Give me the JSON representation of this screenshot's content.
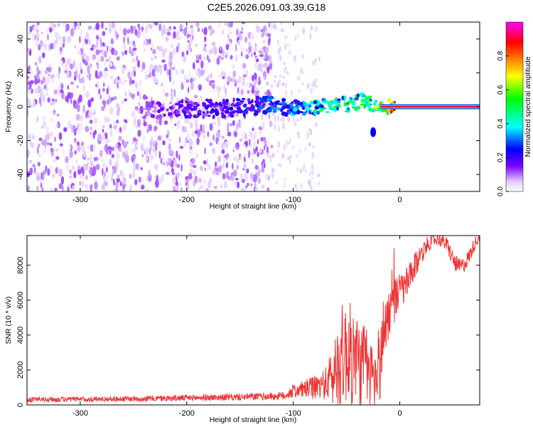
{
  "title": "C2E5.2026.091.03.39.G18",
  "chart_data": [
    {
      "type": "heatmap",
      "title": "C2E5.2026.091.03.39.G18",
      "xlabel": "Height of straight line (km)",
      "ylabel": "Frequency (Hz)",
      "xlim": [
        -350,
        75
      ],
      "ylim": [
        -50,
        50
      ],
      "xticks": [
        -300,
        -200,
        -100,
        0
      ],
      "xtick_labels": [
        "-300",
        "-200",
        "-100",
        "0"
      ],
      "yticks": [
        -40,
        -20,
        0,
        20,
        40
      ],
      "ytick_labels": [
        "-40",
        "-20",
        "0",
        "20",
        "40"
      ],
      "colorbar": {
        "label": "Normalized spectral amplitude",
        "range": [
          0,
          1
        ],
        "ticks": [
          0.0,
          0.2,
          0.4,
          0.6,
          0.8
        ],
        "tick_labels": [
          "0.0",
          "0.2",
          "0.4",
          "0.6",
          "0.8"
        ],
        "colors": [
          "#ffffff",
          "#7a00ff",
          "#0000ff",
          "#00ffff",
          "#00ff00",
          "#ffff00",
          "#ff7f00",
          "#ff0000",
          "#ff00ff"
        ]
      },
      "features": {
        "noise_region_x": [
          -350,
          -120
        ],
        "noise_amplitude_range": [
          0.02,
          0.12
        ],
        "signal_trace": {
          "x": [
            -240,
            -200,
            -170,
            -120,
            -100,
            -80,
            -60,
            -45,
            -35,
            -20,
            -10,
            0,
            5,
            20,
            40,
            60,
            75
          ],
          "freq": [
            -2,
            -1,
            -1,
            1,
            0,
            -1,
            2,
            1,
            4,
            0,
            0,
            0,
            0,
            0,
            0,
            0,
            0
          ],
          "amplitude": [
            0.12,
            0.2,
            0.22,
            0.3,
            0.35,
            0.45,
            0.5,
            0.55,
            0.5,
            0.65,
            0.85,
            0.9,
            0.85,
            0.92,
            0.95,
            0.95,
            0.95
          ]
        },
        "isolated_blob": {
          "x": -25,
          "freq": -15,
          "amplitude": 0.25
        }
      }
    },
    {
      "type": "line",
      "xlabel": "Height of straight line (km)",
      "ylabel": "SNR (10 * v/v)",
      "xlim": [
        -350,
        75
      ],
      "ylim": [
        0,
        9700
      ],
      "xticks": [
        -300,
        -200,
        -100,
        0
      ],
      "xtick_labels": [
        "-300",
        "-200",
        "-100",
        "0"
      ],
      "yticks": [
        0,
        2000,
        4000,
        6000,
        8000
      ],
      "ytick_labels": [
        "0",
        "2000",
        "4000",
        "6000",
        "8000"
      ],
      "series": [
        {
          "name": "SNR",
          "color": "#ee3333",
          "x": [
            -350,
            -300,
            -250,
            -200,
            -150,
            -120,
            -110,
            -100,
            -90,
            -80,
            -70,
            -65,
            -60,
            -55,
            -50,
            -45,
            -40,
            -35,
            -30,
            -25,
            -22,
            -20,
            -17,
            -15,
            -12,
            -10,
            -5,
            0,
            5,
            10,
            15,
            20,
            25,
            30,
            35,
            40,
            45,
            50,
            55,
            60,
            65,
            70,
            75
          ],
          "y": [
            300,
            320,
            350,
            400,
            450,
            500,
            500,
            800,
            900,
            1000,
            1200,
            1500,
            2000,
            2800,
            3000,
            2800,
            2500,
            2200,
            2000,
            1600,
            1500,
            1800,
            3000,
            4500,
            5000,
            5300,
            6000,
            6500,
            6800,
            7300,
            8000,
            8700,
            9100,
            9400,
            9500,
            9400,
            9100,
            8300,
            7900,
            8000,
            8500,
            9200,
            9700
          ],
          "spread": [
            150,
            150,
            160,
            180,
            200,
            220,
            250,
            400,
            500,
            700,
            900,
            1500,
            2400,
            3000,
            3000,
            3000,
            2800,
            2500,
            2400,
            1800,
            1600,
            2000,
            2500,
            2000,
            1600,
            1500,
            1300,
            1100,
            1000,
            900,
            800,
            600,
            500,
            400,
            350,
            400,
            450,
            500,
            500,
            450,
            450,
            400,
            300
          ]
        }
      ]
    }
  ]
}
